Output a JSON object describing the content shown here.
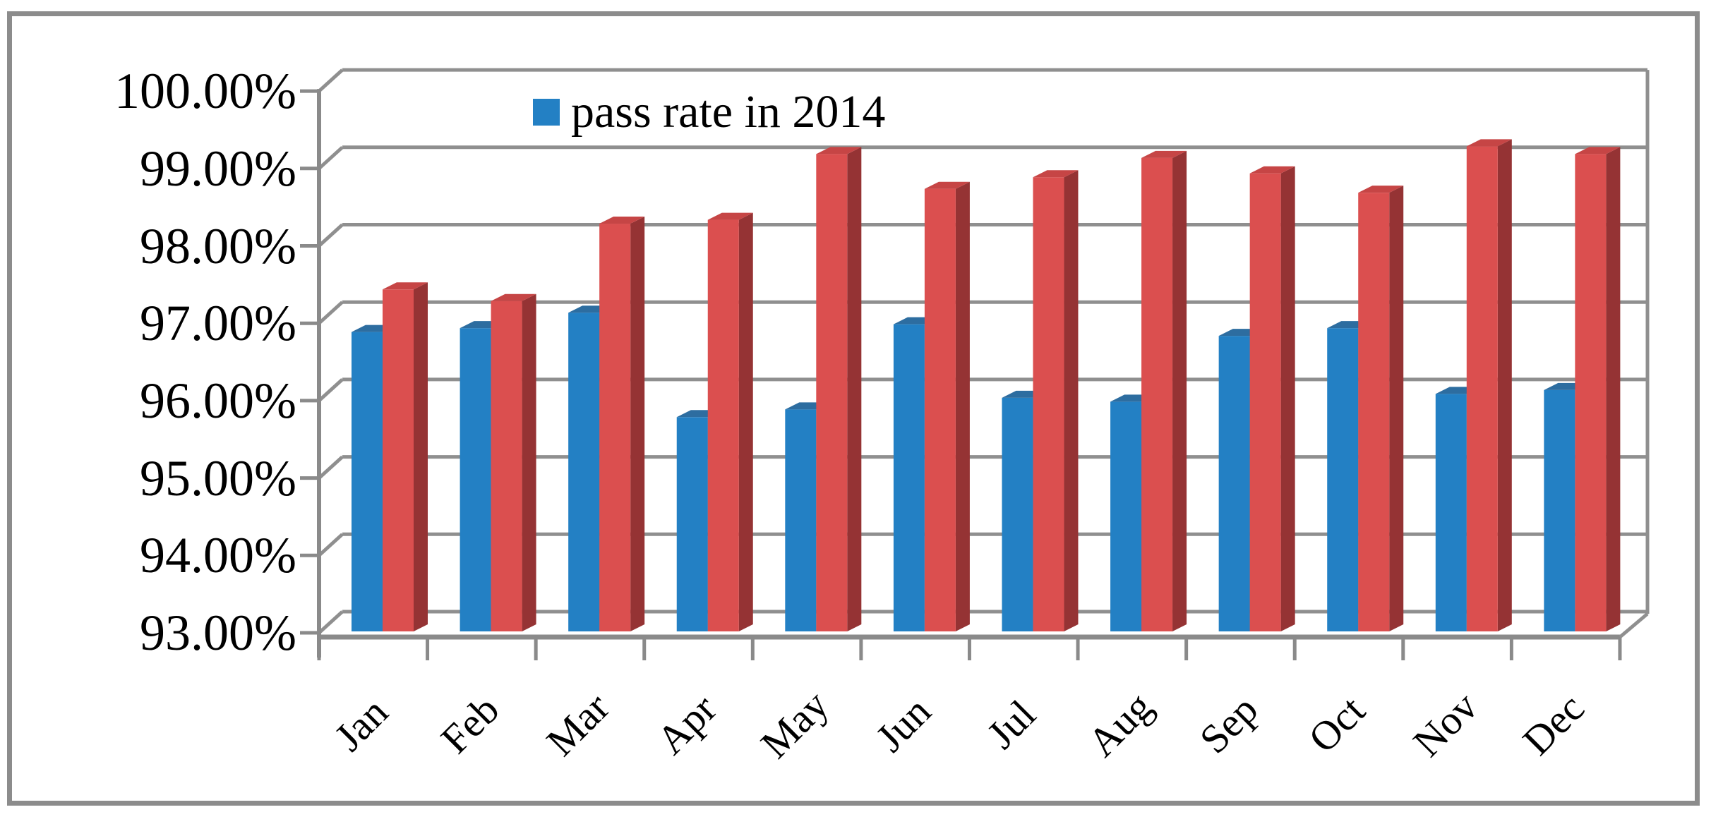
{
  "page": {
    "background_color": "#FFFFFF",
    "frame_border_color": "#8C8C8C"
  },
  "legend": {
    "label": "pass rate in 2014",
    "swatch_color": "#2380C4",
    "position": "top-center"
  },
  "chart_data": {
    "type": "bar",
    "style": "3d-clustered-column",
    "title": "",
    "xlabel": "",
    "ylabel": "",
    "categories": [
      "Jan",
      "Feb",
      "Mar",
      "Apr",
      "May",
      "Jun",
      "Jul",
      "Aug",
      "Sep",
      "Oct",
      "Nov",
      "Dec"
    ],
    "series": [
      {
        "name": "pass rate in 2014",
        "color": "#2380C4",
        "color_top": "#2D6DA0",
        "color_side": "#1D5E95",
        "values": [
          96.8,
          96.85,
          97.05,
          95.7,
          95.8,
          96.9,
          95.95,
          95.9,
          96.75,
          96.85,
          96.0,
          96.05
        ]
      },
      {
        "name": "",
        "color": "#DB4F4F",
        "color_top": "#C64545",
        "color_side": "#953334",
        "values": [
          97.35,
          97.2,
          98.2,
          98.25,
          99.1,
          98.65,
          98.8,
          99.05,
          98.85,
          98.6,
          99.2,
          99.1
        ]
      }
    ],
    "ylim": [
      93,
      100
    ],
    "ytick_step": 1,
    "ytick_labels": [
      "100.00%",
      "99.00%",
      "98.00%",
      "97.00%",
      "96.00%",
      "95.00%",
      "94.00%",
      "93.00%"
    ],
    "grid": true,
    "legend_position": "top-center",
    "gridline_color": "#8F8F8F",
    "axis_color": "#8A8A8A"
  }
}
